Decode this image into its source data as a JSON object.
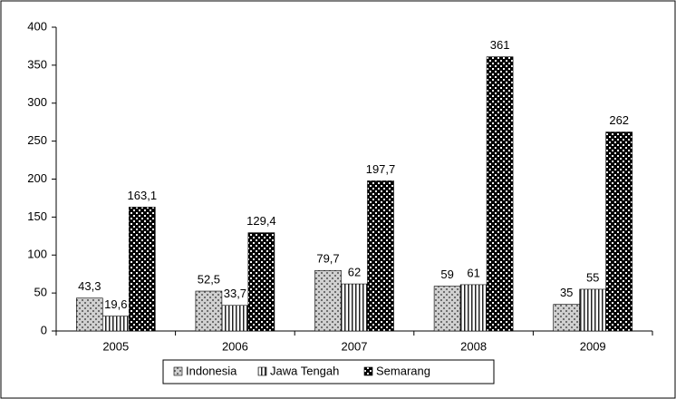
{
  "chart_data": {
    "type": "bar",
    "categories": [
      "2005",
      "2006",
      "2007",
      "2008",
      "2009"
    ],
    "series": [
      {
        "name": "Indonesia",
        "color": "#6e6e6e",
        "values": [
          43.3,
          52.5,
          79.7,
          59,
          35
        ],
        "value_labels": [
          "43,3",
          "52,5",
          "79,7",
          "59",
          "35"
        ]
      },
      {
        "name": "Jawa Tengah",
        "color": "#222222",
        "values": [
          19.6,
          33.7,
          62,
          61,
          55
        ],
        "value_labels": [
          "19,6",
          "33,7",
          "62",
          "61",
          "55"
        ]
      },
      {
        "name": "Semarang",
        "color": "#000000",
        "values": [
          163.1,
          129.4,
          197.7,
          361,
          262
        ],
        "value_labels": [
          "163,1",
          "129,4",
          "197,7",
          "361",
          "262"
        ]
      }
    ],
    "ylim": [
      0,
      400
    ],
    "yticks": [
      0,
      50,
      100,
      150,
      200,
      250,
      300,
      350,
      400
    ],
    "grid": false,
    "legend": "bottom"
  }
}
